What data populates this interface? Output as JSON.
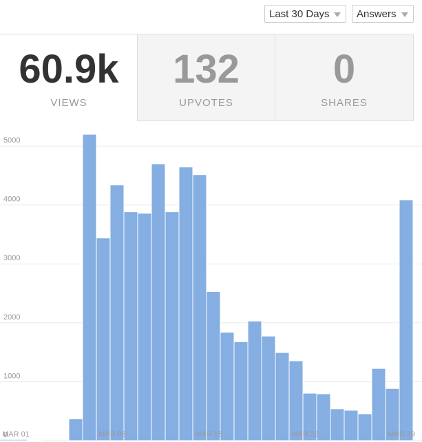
{
  "controls": {
    "range": "Last 30 Days",
    "content": "Answers"
  },
  "stats": [
    {
      "value": "60.9k",
      "label": "VIEWS"
    },
    {
      "value": "132",
      "label": "UPVOTES"
    },
    {
      "value": "0",
      "label": "SHARES"
    }
  ],
  "chart_data": {
    "type": "bar",
    "categories": [
      "MAR 01",
      null,
      null,
      null,
      null,
      null,
      null,
      "MAR 08",
      null,
      null,
      null,
      null,
      null,
      null,
      "MAR 15",
      null,
      null,
      null,
      null,
      null,
      null,
      "MAR 22",
      null,
      null,
      null,
      null,
      null,
      null,
      "MAR 29",
      null
    ],
    "values": [
      20,
      20,
      10,
      0,
      0,
      370,
      5200,
      3440,
      4340,
      3885,
      3860,
      4700,
      3885,
      4645,
      4515,
      2530,
      1840,
      1680,
      2030,
      1775,
      1495,
      1355,
      805,
      795,
      540,
      515,
      455,
      1225,
      885,
      4085
    ],
    "color": "#85aee2",
    "ylim": [
      0,
      5400
    ],
    "yticks": [
      0,
      1000,
      2000,
      3000,
      4000,
      5000
    ],
    "grid": true
  }
}
